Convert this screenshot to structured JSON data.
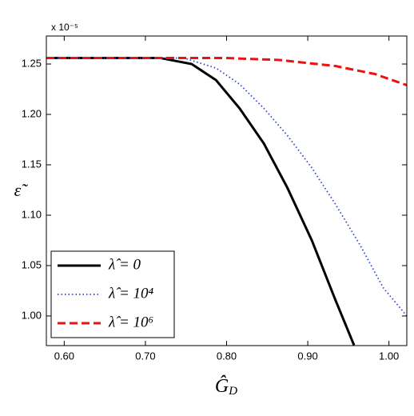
{
  "chart_data": {
    "type": "line",
    "x_label": {
      "base": "Ĝ",
      "sub": "D"
    },
    "y_label": "ε̃",
    "y_multiplier": "x 10⁻⁵",
    "xlim": [
      0.578,
      1.022
    ],
    "ylim": [
      0.9706,
      1.2778
    ],
    "xticks": [
      {
        "value": 0.6,
        "label": "0.60"
      },
      {
        "value": 0.7,
        "label": "0.70"
      },
      {
        "value": 0.8,
        "label": "0.80"
      },
      {
        "value": 0.9,
        "label": "0.90"
      },
      {
        "value": 1.0,
        "label": "1.00"
      }
    ],
    "yticks": [
      {
        "value": 1.0,
        "label": "1.00"
      },
      {
        "value": 1.05,
        "label": "1.05"
      },
      {
        "value": 1.1,
        "label": "1.10"
      },
      {
        "value": 1.15,
        "label": "1.15"
      },
      {
        "value": 1.2,
        "label": "1.20"
      },
      {
        "value": 1.25,
        "label": "1.25"
      }
    ],
    "grid": false,
    "legend": "lower left",
    "series": [
      {
        "name": "λ̂ = 0",
        "color": "#000000",
        "dash": "solid",
        "x": [
          0.578,
          0.718,
          0.757,
          0.787,
          0.816,
          0.846,
          0.875,
          0.905,
          0.934,
          0.957
        ],
        "values": [
          1.256,
          1.256,
          1.25,
          1.234,
          1.206,
          1.171,
          1.127,
          1.075,
          1.016,
          0.971
        ]
      },
      {
        "name": "λ̂ = 10⁴",
        "color": "#3344cc",
        "dash": "dotted",
        "x": [
          0.578,
          0.747,
          0.787,
          0.816,
          0.846,
          0.875,
          0.905,
          0.934,
          0.964,
          0.993,
          1.022
        ],
        "values": [
          1.256,
          1.256,
          1.246,
          1.23,
          1.206,
          1.179,
          1.147,
          1.111,
          1.071,
          1.028,
          1.0
        ]
      },
      {
        "name": "λ̂ = 10⁶",
        "color": "#ee1111",
        "dash": "dashed",
        "x": [
          0.578,
          0.797,
          0.865,
          0.934,
          0.983,
          1.022
        ],
        "values": [
          1.256,
          1.256,
          1.254,
          1.248,
          1.24,
          1.229
        ]
      }
    ]
  }
}
